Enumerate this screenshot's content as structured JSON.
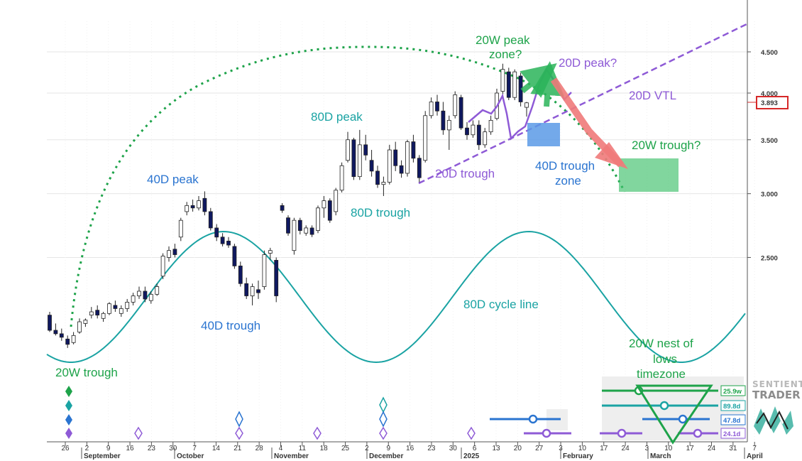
{
  "chart_data": {
    "type": "candlestick",
    "title": "",
    "price_axis": {
      "scale": "log",
      "ticks": [
        {
          "value": 2.5,
          "label": "2.500"
        },
        {
          "value": 3.0,
          "label": "3.000"
        },
        {
          "value": 3.5,
          "label": "3.500"
        },
        {
          "value": 4.0,
          "label": "4.000"
        },
        {
          "value": 4.5,
          "label": "4.500"
        }
      ],
      "last_price_label": "3.893"
    },
    "time_axis": {
      "day_ticks": [
        "26",
        "2",
        "9",
        "16",
        "23",
        "30",
        "7",
        "14",
        "21",
        "28",
        "4",
        "11",
        "18",
        "25",
        "2",
        "9",
        "16",
        "23",
        "30",
        "6",
        "13",
        "20",
        "27",
        "3",
        "10",
        "17",
        "24",
        "3",
        "10",
        "17",
        "24",
        "31",
        "7"
      ],
      "month_labels": [
        "September",
        "October",
        "November",
        "December",
        "2025",
        "February",
        "March",
        "April"
      ]
    },
    "candles": [
      {
        "o": 2.12,
        "h": 2.14,
        "l": 2.02,
        "c": 2.03
      },
      {
        "o": 2.03,
        "h": 2.07,
        "l": 2.0,
        "c": 2.01
      },
      {
        "o": 2.01,
        "h": 2.04,
        "l": 1.97,
        "c": 1.99
      },
      {
        "o": 1.98,
        "h": 2.0,
        "l": 1.93,
        "c": 1.95
      },
      {
        "o": 1.96,
        "h": 2.02,
        "l": 1.95,
        "c": 2.0
      },
      {
        "o": 2.02,
        "h": 2.1,
        "l": 2.01,
        "c": 2.08
      },
      {
        "o": 2.07,
        "h": 2.1,
        "l": 2.05,
        "c": 2.09
      },
      {
        "o": 2.12,
        "h": 2.17,
        "l": 2.1,
        "c": 2.14
      },
      {
        "o": 2.15,
        "h": 2.18,
        "l": 2.1,
        "c": 2.12
      },
      {
        "o": 2.1,
        "h": 2.14,
        "l": 2.08,
        "c": 2.13
      },
      {
        "o": 2.13,
        "h": 2.2,
        "l": 2.12,
        "c": 2.19
      },
      {
        "o": 2.18,
        "h": 2.21,
        "l": 2.14,
        "c": 2.16
      },
      {
        "o": 2.13,
        "h": 2.18,
        "l": 2.11,
        "c": 2.16
      },
      {
        "o": 2.16,
        "h": 2.22,
        "l": 2.14,
        "c": 2.2
      },
      {
        "o": 2.2,
        "h": 2.26,
        "l": 2.18,
        "c": 2.24
      },
      {
        "o": 2.24,
        "h": 2.3,
        "l": 2.22,
        "c": 2.27
      },
      {
        "o": 2.27,
        "h": 2.3,
        "l": 2.2,
        "c": 2.22
      },
      {
        "o": 2.21,
        "h": 2.27,
        "l": 2.19,
        "c": 2.25
      },
      {
        "o": 2.25,
        "h": 2.32,
        "l": 2.24,
        "c": 2.3
      },
      {
        "o": 2.37,
        "h": 2.53,
        "l": 2.35,
        "c": 2.51
      },
      {
        "o": 2.5,
        "h": 2.58,
        "l": 2.47,
        "c": 2.55
      },
      {
        "o": 2.56,
        "h": 2.6,
        "l": 2.5,
        "c": 2.52
      },
      {
        "o": 2.65,
        "h": 2.8,
        "l": 2.62,
        "c": 2.78
      },
      {
        "o": 2.85,
        "h": 2.93,
        "l": 2.82,
        "c": 2.9
      },
      {
        "o": 2.9,
        "h": 2.95,
        "l": 2.85,
        "c": 2.88
      },
      {
        "o": 2.88,
        "h": 2.98,
        "l": 2.86,
        "c": 2.94
      },
      {
        "o": 2.96,
        "h": 3.02,
        "l": 2.82,
        "c": 2.85
      },
      {
        "o": 2.85,
        "h": 2.88,
        "l": 2.7,
        "c": 2.72
      },
      {
        "o": 2.72,
        "h": 2.75,
        "l": 2.62,
        "c": 2.65
      },
      {
        "o": 2.65,
        "h": 2.68,
        "l": 2.58,
        "c": 2.6
      },
      {
        "o": 2.62,
        "h": 2.65,
        "l": 2.57,
        "c": 2.59
      },
      {
        "o": 2.58,
        "h": 2.6,
        "l": 2.42,
        "c": 2.44
      },
      {
        "o": 2.44,
        "h": 2.47,
        "l": 2.3,
        "c": 2.32
      },
      {
        "o": 2.32,
        "h": 2.36,
        "l": 2.22,
        "c": 2.24
      },
      {
        "o": 2.24,
        "h": 2.32,
        "l": 2.18,
        "c": 2.3
      },
      {
        "o": 2.28,
        "h": 2.34,
        "l": 2.22,
        "c": 2.26
      },
      {
        "o": 2.3,
        "h": 2.55,
        "l": 2.28,
        "c": 2.52
      },
      {
        "o": 2.53,
        "h": 2.57,
        "l": 2.48,
        "c": 2.55
      },
      {
        "o": 2.48,
        "h": 2.5,
        "l": 2.2,
        "c": 2.24
      },
      {
        "o": 2.9,
        "h": 2.92,
        "l": 2.84,
        "c": 2.86
      },
      {
        "o": 2.8,
        "h": 2.82,
        "l": 2.66,
        "c": 2.68
      },
      {
        "o": 2.55,
        "h": 2.8,
        "l": 2.52,
        "c": 2.78
      },
      {
        "o": 2.78,
        "h": 2.8,
        "l": 2.67,
        "c": 2.7
      },
      {
        "o": 2.68,
        "h": 2.74,
        "l": 2.66,
        "c": 2.72
      },
      {
        "o": 2.72,
        "h": 2.74,
        "l": 2.65,
        "c": 2.67
      },
      {
        "o": 2.7,
        "h": 2.9,
        "l": 2.68,
        "c": 2.88
      },
      {
        "o": 2.88,
        "h": 2.98,
        "l": 2.8,
        "c": 2.94
      },
      {
        "o": 2.94,
        "h": 2.96,
        "l": 2.76,
        "c": 2.78
      },
      {
        "o": 2.85,
        "h": 3.05,
        "l": 2.82,
        "c": 3.03
      },
      {
        "o": 3.03,
        "h": 3.28,
        "l": 3.01,
        "c": 3.25
      },
      {
        "o": 3.3,
        "h": 3.58,
        "l": 3.28,
        "c": 3.5
      },
      {
        "o": 3.5,
        "h": 3.52,
        "l": 3.12,
        "c": 3.15
      },
      {
        "o": 3.15,
        "h": 3.6,
        "l": 3.12,
        "c": 3.45
      },
      {
        "o": 3.45,
        "h": 3.55,
        "l": 3.3,
        "c": 3.35
      },
      {
        "o": 3.3,
        "h": 3.4,
        "l": 3.15,
        "c": 3.2
      },
      {
        "o": 3.2,
        "h": 3.25,
        "l": 3.05,
        "c": 3.08
      },
      {
        "o": 3.08,
        "h": 3.15,
        "l": 2.98,
        "c": 3.1
      },
      {
        "o": 3.1,
        "h": 3.45,
        "l": 3.08,
        "c": 3.4
      },
      {
        "o": 3.4,
        "h": 3.48,
        "l": 3.2,
        "c": 3.25
      },
      {
        "o": 3.25,
        "h": 3.3,
        "l": 3.14,
        "c": 3.18
      },
      {
        "o": 3.18,
        "h": 3.5,
        "l": 3.15,
        "c": 3.48
      },
      {
        "o": 3.48,
        "h": 3.55,
        "l": 3.28,
        "c": 3.32
      },
      {
        "o": 3.32,
        "h": 3.35,
        "l": 3.1,
        "c": 3.14
      },
      {
        "o": 3.3,
        "h": 3.8,
        "l": 3.28,
        "c": 3.75
      },
      {
        "o": 3.75,
        "h": 3.95,
        "l": 3.72,
        "c": 3.9
      },
      {
        "o": 3.9,
        "h": 3.98,
        "l": 3.75,
        "c": 3.8
      },
      {
        "o": 3.8,
        "h": 3.9,
        "l": 3.55,
        "c": 3.6
      },
      {
        "o": 3.6,
        "h": 3.75,
        "l": 3.4,
        "c": 3.7
      },
      {
        "o": 3.75,
        "h": 4.02,
        "l": 3.72,
        "c": 3.98
      },
      {
        "o": 3.95,
        "h": 3.98,
        "l": 3.6,
        "c": 3.62
      },
      {
        "o": 3.62,
        "h": 3.68,
        "l": 3.5,
        "c": 3.55
      },
      {
        "o": 3.55,
        "h": 3.7,
        "l": 3.52,
        "c": 3.65
      },
      {
        "o": 3.65,
        "h": 3.7,
        "l": 3.4,
        "c": 3.45
      },
      {
        "o": 3.45,
        "h": 3.62,
        "l": 3.42,
        "c": 3.58
      },
      {
        "o": 3.58,
        "h": 3.75,
        "l": 3.55,
        "c": 3.7
      },
      {
        "o": 3.72,
        "h": 4.05,
        "l": 3.7,
        "c": 4.0
      },
      {
        "o": 4.02,
        "h": 4.35,
        "l": 3.95,
        "c": 4.28
      },
      {
        "o": 4.25,
        "h": 4.3,
        "l": 3.92,
        "c": 3.95
      },
      {
        "o": 3.95,
        "h": 4.28,
        "l": 3.92,
        "c": 4.25
      },
      {
        "o": 4.2,
        "h": 4.24,
        "l": 3.85,
        "c": 3.9
      },
      {
        "o": 3.84,
        "h": 3.9,
        "l": 3.74,
        "c": 3.89
      }
    ],
    "cycle_line_80d": {
      "label": "80D cycle line"
    },
    "annotations": {
      "t20w_trough": "20W trough",
      "p40d_peak": "40D peak",
      "t40d_trough": "40D trough",
      "p80d_peak": "80D peak",
      "t80d_trough": "80D trough",
      "p20w_zone_line1": "20W peak",
      "p20w_zone_line2": "zone?",
      "p20d_peak": "20D peak?",
      "vtl_20d": "20D VTL",
      "t20d_trough": "20D trough",
      "t40d_zone_line1": "40D trough",
      "t40d_zone_line2": "zone",
      "t20w_trough_q": "20W trough?",
      "nest_line1": "20W nest of",
      "nest_line2": "lows",
      "nest_line3": "timezone",
      "cycle_80d": "80D cycle line"
    },
    "cycle_badges": [
      {
        "label": "25.9w",
        "color": "#1ea34a"
      },
      {
        "label": "89.8d",
        "color": "#1aa3a3"
      },
      {
        "label": "47.8d",
        "color": "#2a74d0"
      },
      {
        "label": "24.1d",
        "color": "#8e5ad6"
      }
    ],
    "colors": {
      "green": "#1ea34a",
      "teal": "#1aa3a3",
      "blue": "#2a74d0",
      "purple": "#8e5ad6",
      "red_arrow": "#f07a7a",
      "candle_dark": "#0f1860"
    }
  },
  "brand": {
    "line1": "SENTIENT",
    "line2": "TRADER"
  }
}
